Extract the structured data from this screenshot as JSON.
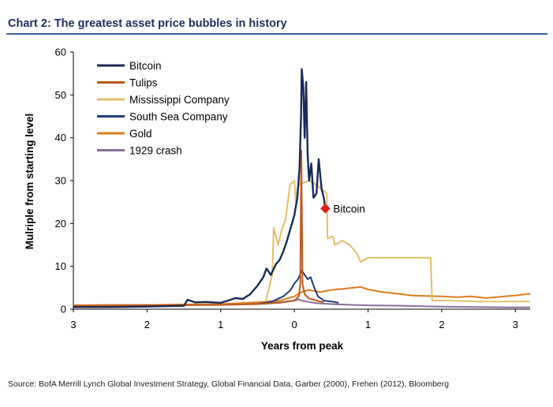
{
  "title": "Chart 2: The greatest asset price bubbles in history",
  "source": "Source:  BofA Merrill Lynch Global Investment Strategy, Global Financial Data, Garber (2000), Frehen (2012),  Bloomberg",
  "chart_data": {
    "type": "line",
    "xlabel": "Years from peak",
    "ylabel": "Mulriple from starting  level",
    "xlim": [
      -3,
      3.2
    ],
    "ylim": [
      0,
      60
    ],
    "x_ticks": [
      -3,
      -2,
      -1,
      0,
      1,
      2,
      3
    ],
    "x_tick_labels": [
      "3",
      "2",
      "1",
      "0",
      "1",
      "2",
      "3"
    ],
    "y_ticks": [
      0,
      10,
      20,
      30,
      40,
      50,
      60
    ],
    "y_tick_labels": [
      "0",
      "10",
      "20",
      "30",
      "40",
      "50",
      "60"
    ],
    "legend_position": "top-left",
    "annotation": {
      "label": "Bitcoin",
      "x": 0.42,
      "y": 23.5,
      "marker_color": "#e0201b"
    },
    "series": [
      {
        "name": "Bitcoin",
        "color": "#1b2a57",
        "points": [
          [
            -3,
            0.5
          ],
          [
            -2.5,
            0.5
          ],
          [
            -2,
            0.6
          ],
          [
            -1.5,
            0.8
          ],
          [
            -1.45,
            2.2
          ],
          [
            -1.35,
            1.6
          ],
          [
            -1.2,
            1.7
          ],
          [
            -1,
            1.5
          ],
          [
            -0.9,
            2.0
          ],
          [
            -0.8,
            2.6
          ],
          [
            -0.7,
            2.4
          ],
          [
            -0.6,
            3.5
          ],
          [
            -0.5,
            5.5
          ],
          [
            -0.42,
            7.5
          ],
          [
            -0.38,
            9.5
          ],
          [
            -0.32,
            8.0
          ],
          [
            -0.25,
            10.5
          ],
          [
            -0.2,
            11.5
          ],
          [
            -0.15,
            13.5
          ],
          [
            -0.1,
            16.0
          ],
          [
            -0.05,
            19.0
          ],
          [
            0,
            22.0
          ],
          [
            0.04,
            26.0
          ],
          [
            0.07,
            33.0
          ],
          [
            0.09,
            45.0
          ],
          [
            0.1,
            56.0
          ],
          [
            0.12,
            52.0
          ],
          [
            0.14,
            40.0
          ],
          [
            0.16,
            53.0
          ],
          [
            0.18,
            36.0
          ],
          [
            0.2,
            30.0
          ],
          [
            0.23,
            34.0
          ],
          [
            0.26,
            26.0
          ],
          [
            0.3,
            27.0
          ],
          [
            0.33,
            35.0
          ],
          [
            0.37,
            28.0
          ],
          [
            0.4,
            26.0
          ],
          [
            0.42,
            23.5
          ]
        ]
      },
      {
        "name": "Tulips",
        "color": "#c0571a",
        "points": [
          [
            -3,
            0.8
          ],
          [
            -2,
            0.9
          ],
          [
            -1,
            1.0
          ],
          [
            -0.5,
            1.2
          ],
          [
            -0.2,
            1.5
          ],
          [
            0,
            2.0
          ],
          [
            0.06,
            3.0
          ],
          [
            0.08,
            6.0
          ],
          [
            0.095,
            37.0
          ],
          [
            0.11,
            6.0
          ],
          [
            0.14,
            3.5
          ],
          [
            0.2,
            2.5
          ],
          [
            0.3,
            2.0
          ],
          [
            0.4,
            1.6
          ]
        ]
      },
      {
        "name": "Mississippi Company",
        "color": "#e0c06a",
        "points": [
          [
            -0.4,
            1.0
          ],
          [
            -0.3,
            8.0
          ],
          [
            -0.28,
            19.0
          ],
          [
            -0.22,
            15.0
          ],
          [
            -0.18,
            18.0
          ],
          [
            -0.12,
            21.0
          ],
          [
            -0.06,
            29.0
          ],
          [
            0.0,
            30.0
          ],
          [
            0.02,
            25.0
          ],
          [
            0.05,
            29.0
          ],
          [
            0.2,
            30.0
          ],
          [
            0.3,
            29.0
          ],
          [
            0.44,
            27.0
          ],
          [
            0.45,
            16.5
          ],
          [
            0.52,
            17.0
          ],
          [
            0.55,
            15.0
          ],
          [
            0.65,
            16.0
          ],
          [
            0.75,
            15.0
          ],
          [
            0.85,
            13.0
          ],
          [
            0.9,
            11.0
          ],
          [
            1.0,
            12.0
          ],
          [
            1.3,
            12.0
          ],
          [
            1.6,
            12.0
          ],
          [
            1.85,
            12.0
          ],
          [
            1.87,
            2.0
          ],
          [
            2.1,
            2.0
          ],
          [
            2.5,
            1.8
          ],
          [
            3.2,
            1.8
          ]
        ]
      },
      {
        "name": "South Sea Company",
        "color": "#1f3e7a",
        "points": [
          [
            -0.5,
            1.2
          ],
          [
            -0.3,
            1.8
          ],
          [
            -0.15,
            3.0
          ],
          [
            -0.05,
            4.5
          ],
          [
            0.0,
            6.0
          ],
          [
            0.05,
            7.0
          ],
          [
            0.1,
            9.0
          ],
          [
            0.14,
            8.0
          ],
          [
            0.18,
            7.0
          ],
          [
            0.22,
            7.5
          ],
          [
            0.27,
            5.0
          ],
          [
            0.32,
            3.0
          ],
          [
            0.4,
            2.0
          ],
          [
            0.5,
            1.8
          ],
          [
            0.6,
            1.5
          ]
        ]
      },
      {
        "name": "Gold",
        "color": "#e07b1c",
        "points": [
          [
            -3,
            0.9
          ],
          [
            -2.5,
            1.0
          ],
          [
            -2,
            1.0
          ],
          [
            -1.5,
            1.1
          ],
          [
            -1,
            1.2
          ],
          [
            -0.5,
            1.6
          ],
          [
            -0.2,
            2.0
          ],
          [
            0,
            3.0
          ],
          [
            0.1,
            4.0
          ],
          [
            0.2,
            4.5
          ],
          [
            0.35,
            4.0
          ],
          [
            0.5,
            4.5
          ],
          [
            0.7,
            4.8
          ],
          [
            0.9,
            5.2
          ],
          [
            1.0,
            4.6
          ],
          [
            1.2,
            4.0
          ],
          [
            1.4,
            3.6
          ],
          [
            1.6,
            3.2
          ],
          [
            1.8,
            3.1
          ],
          [
            2.0,
            3.0
          ],
          [
            2.2,
            2.8
          ],
          [
            2.4,
            3.0
          ],
          [
            2.6,
            2.6
          ],
          [
            2.8,
            2.9
          ],
          [
            3.0,
            3.2
          ],
          [
            3.2,
            3.6
          ]
        ]
      },
      {
        "name": "1929 crash",
        "color": "#8a6f9e",
        "points": [
          [
            -3,
            0.9
          ],
          [
            -2,
            1.0
          ],
          [
            -1,
            1.1
          ],
          [
            -0.5,
            1.3
          ],
          [
            -0.2,
            1.6
          ],
          [
            0,
            2.0
          ],
          [
            0.05,
            2.3
          ],
          [
            0.1,
            2.0
          ],
          [
            0.2,
            1.7
          ],
          [
            0.3,
            1.4
          ],
          [
            0.5,
            1.2
          ],
          [
            0.8,
            1.0
          ],
          [
            1.0,
            0.9
          ],
          [
            1.5,
            0.8
          ],
          [
            2.0,
            0.6
          ],
          [
            2.5,
            0.5
          ],
          [
            3.0,
            0.4
          ],
          [
            3.2,
            0.4
          ]
        ]
      }
    ]
  }
}
